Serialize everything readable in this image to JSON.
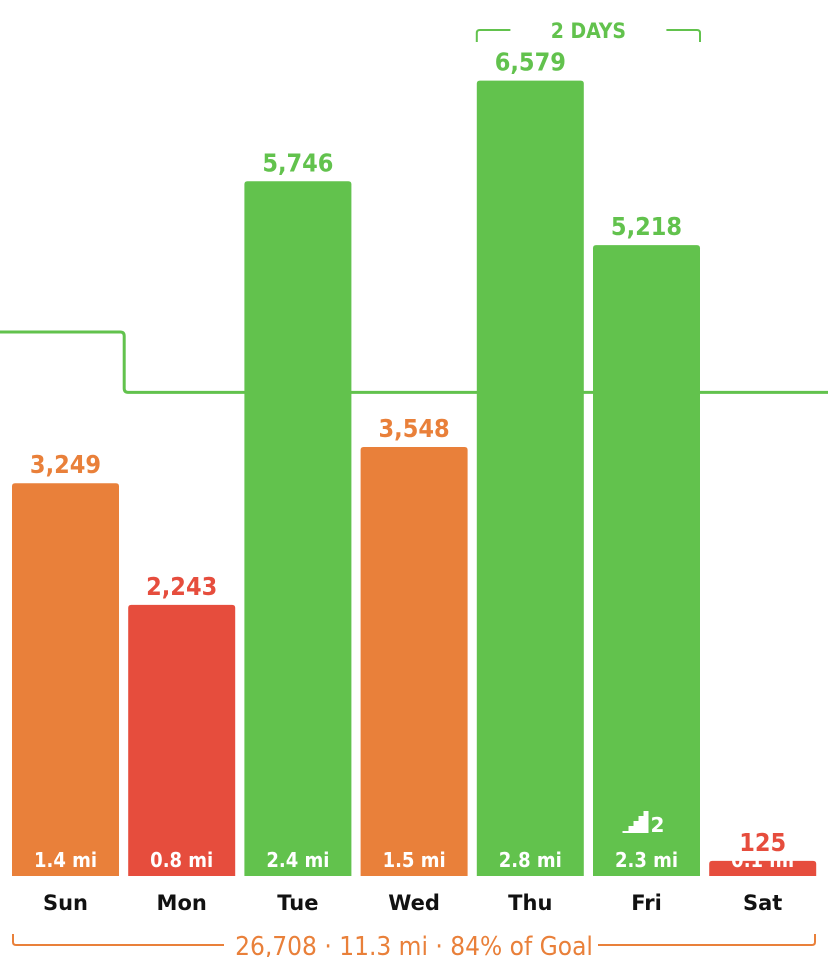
{
  "chart_data": {
    "type": "bar",
    "categories": [
      "Sun",
      "Mon",
      "Tue",
      "Wed",
      "Thu",
      "Fri",
      "Sat"
    ],
    "values": [
      3249,
      2243,
      5746,
      3548,
      6579,
      5218,
      125
    ],
    "value_labels": [
      "3,249",
      "2,243",
      "5,746",
      "3,548",
      "6,579",
      "5,218",
      "125"
    ],
    "distance_labels": [
      "1.4 mi",
      "0.8 mi",
      "2.4 mi",
      "1.5 mi",
      "2.8 mi",
      "2.3 mi",
      "0.1 mi"
    ],
    "status": [
      "partial",
      "low",
      "goal",
      "partial",
      "goal",
      "goal",
      "low"
    ],
    "goal_before": 4500,
    "goal": 4000,
    "goal_change_after_index": 0,
    "streak": {
      "label": "2 DAYS",
      "start_index": 4,
      "end_index": 5
    },
    "badge": {
      "index": 5,
      "icon": "stairs-icon",
      "count": "2"
    },
    "summary": "26,708 · 11.3 mi · 84% of Goal",
    "ylim": [
      0,
      7000
    ],
    "grid": false,
    "legend": "none"
  },
  "colors": {
    "goal": "#62c24d",
    "partial": "#e9803a",
    "low": "#e64d3d",
    "goal_line": "#62c24d",
    "summary": "#e9803a",
    "day_label": "#111111"
  }
}
